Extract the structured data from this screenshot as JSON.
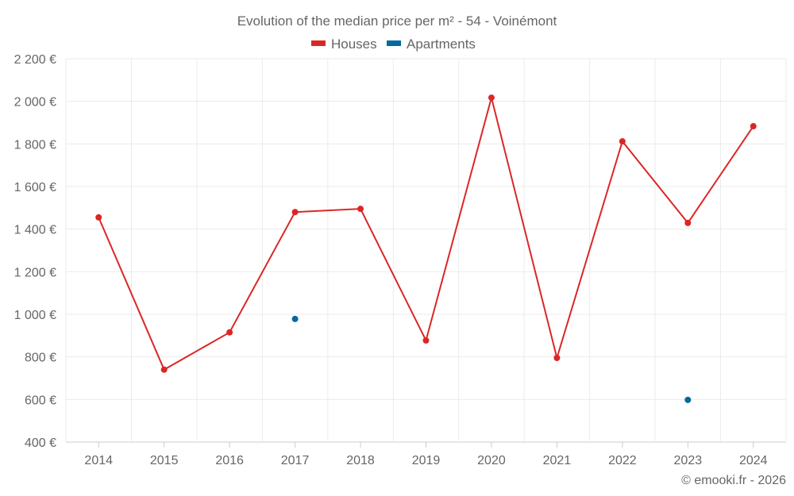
{
  "chart_data": {
    "type": "line",
    "title": "Evolution of the median price per m² - 54 - Voinémont",
    "categories": [
      "2014",
      "2015",
      "2016",
      "2017",
      "2018",
      "2019",
      "2020",
      "2021",
      "2022",
      "2023",
      "2024"
    ],
    "series": [
      {
        "name": "Houses",
        "color": "#dc2626",
        "values": [
          1455,
          740,
          915,
          1480,
          1495,
          877,
          2017,
          795,
          1812,
          1429,
          1883
        ]
      },
      {
        "name": "Apartments",
        "color": "#0369a1",
        "values": [
          null,
          null,
          null,
          978,
          null,
          null,
          null,
          null,
          null,
          598,
          null
        ]
      }
    ],
    "ylim": [
      400,
      2200
    ],
    "yticks": [
      400,
      600,
      800,
      1000,
      1200,
      1400,
      1600,
      1800,
      2000,
      2200
    ],
    "ytick_labels": [
      "400 €",
      "600 €",
      "800 €",
      "1 000 €",
      "1 200 €",
      "1 400 €",
      "1 600 €",
      "1 800 €",
      "2 000 €",
      "2 200 €"
    ],
    "grid": true,
    "legend": "top-center",
    "xlabel": "",
    "ylabel": ""
  },
  "credit": "© emooki.fr - 2026"
}
